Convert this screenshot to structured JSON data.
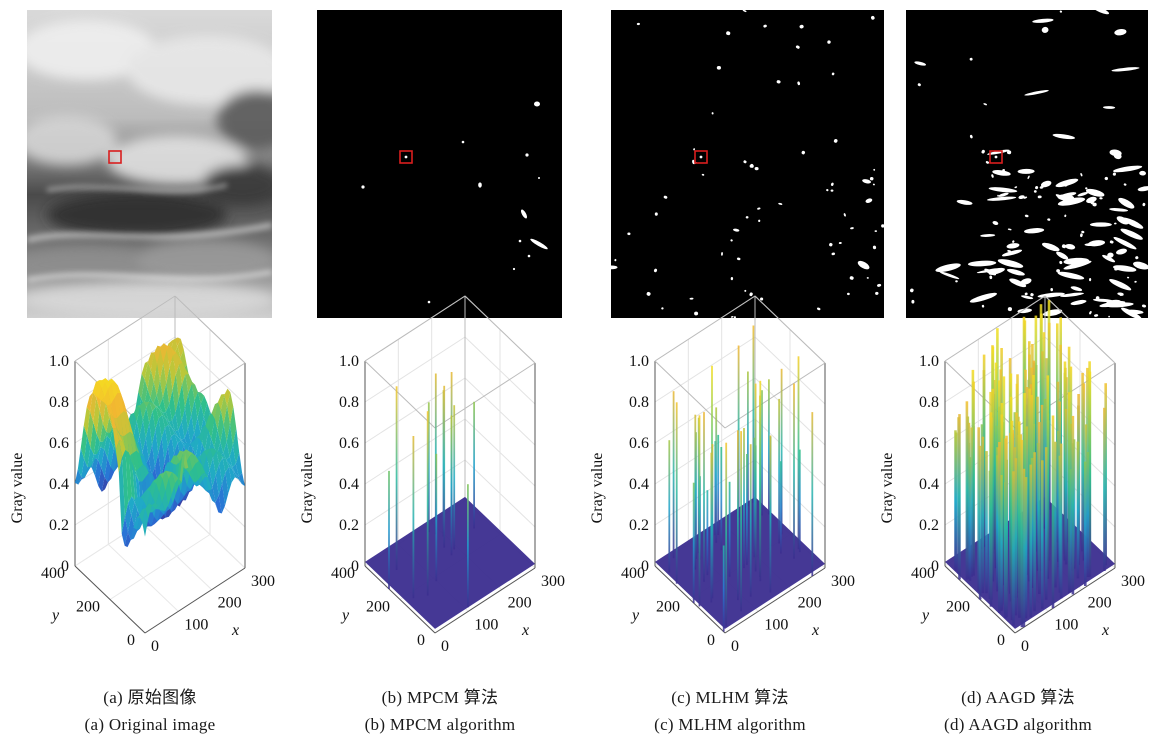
{
  "panels": [
    {
      "id": "a",
      "image_kind": "original-cloud-image",
      "caption_zh": "(a) 原始图像",
      "caption_en": "(a) Original image",
      "plot_kind": "surface"
    },
    {
      "id": "b",
      "image_kind": "binary-detection",
      "caption_zh": "(b) MPCM 算法",
      "caption_en": "(b) MPCM algorithm",
      "plot_kind": "sparse-spikes"
    },
    {
      "id": "c",
      "image_kind": "binary-detection",
      "caption_zh": "(c) MLHM 算法",
      "caption_en": "(c) MLHM algorithm",
      "plot_kind": "dense-spikes"
    },
    {
      "id": "d",
      "image_kind": "binary-detection",
      "caption_zh": "(d) AAGD 算法",
      "caption_en": "(d) AAGD algorithm",
      "plot_kind": "very-dense-spikes"
    }
  ],
  "plot_axes": {
    "zlabel": "Gray value",
    "ylabel": "y",
    "xlabel": "x",
    "z_ticks": [
      "0",
      "0.2",
      "0.4",
      "0.6",
      "0.8",
      "1.0"
    ],
    "y_ticks": [
      "0",
      "200",
      "400"
    ],
    "x_ticks": [
      "0",
      "100",
      "200",
      "300"
    ]
  },
  "colors": {
    "target_box": "#d91e1e",
    "colormap": [
      "#3b2d8f",
      "#2a6fd6",
      "#1fa9c9",
      "#2fc08a",
      "#b8c83a",
      "#f2b632",
      "#f5df1f"
    ]
  },
  "chart_data": [
    {
      "type": "surface",
      "panel": "a",
      "zlabel": "Gray value",
      "xlabel": "x",
      "ylabel": "y",
      "xlim": [
        0,
        300
      ],
      "ylim": [
        0,
        400
      ],
      "zlim": [
        0,
        1.0
      ],
      "z_range_observed": [
        0.3,
        1.0
      ]
    },
    {
      "type": "surface",
      "panel": "b",
      "zlabel": "Gray value",
      "xlabel": "x",
      "ylabel": "y",
      "xlim": [
        0,
        300
      ],
      "ylim": [
        0,
        400
      ],
      "zlim": [
        0,
        1.0
      ],
      "baseline": 0,
      "peak_value": 1.0
    },
    {
      "type": "surface",
      "panel": "c",
      "zlabel": "Gray value",
      "xlabel": "x",
      "ylabel": "y",
      "xlim": [
        0,
        300
      ],
      "ylim": [
        0,
        400
      ],
      "zlim": [
        0,
        1.0
      ],
      "baseline": 0,
      "peak_value": 1.0
    },
    {
      "type": "surface",
      "panel": "d",
      "zlabel": "Gray value",
      "xlabel": "x",
      "ylabel": "y",
      "xlim": [
        0,
        300
      ],
      "ylim": [
        0,
        400
      ],
      "zlim": [
        0,
        1.0
      ],
      "baseline": 0,
      "peak_value": 1.0
    }
  ]
}
